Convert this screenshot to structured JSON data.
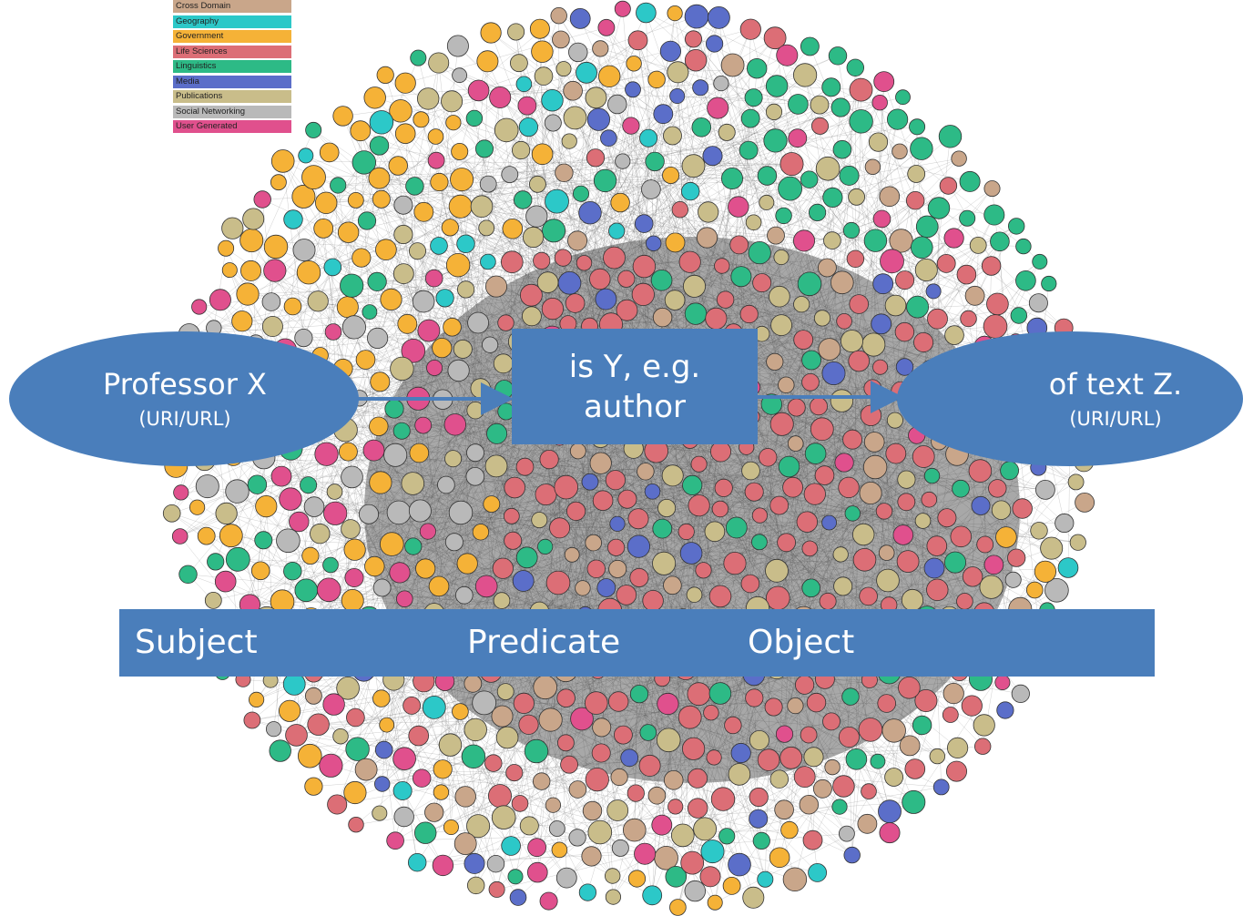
{
  "legend": [
    {
      "label": "Cross Domain",
      "color": "#c9a68a"
    },
    {
      "label": "Geography",
      "color": "#2cc8c8"
    },
    {
      "label": "Government",
      "color": "#f5b237"
    },
    {
      "label": "Life Sciences",
      "color": "#dc6e76"
    },
    {
      "label": "Linguistics",
      "color": "#2dba86"
    },
    {
      "label": "Media",
      "color": "#5b6ec9"
    },
    {
      "label": "Publications",
      "color": "#c9bd8a"
    },
    {
      "label": "Social Networking",
      "color": "#b9b9b9"
    },
    {
      "label": "User Generated",
      "color": "#e0508d"
    }
  ],
  "subject": {
    "title": "Professor X",
    "subtitle": "(URI/URL)"
  },
  "predicate": {
    "line1": "is Y, e.g.",
    "line2": "author"
  },
  "object": {
    "title": "of text Z.",
    "subtitle": "(URI/URL)"
  },
  "triple": {
    "subject": "Subject",
    "predicate": "Predicate",
    "object": "Object"
  },
  "colors": {
    "shape_fill": "#4a7ebb",
    "shape_text": "#ffffff",
    "edge": "#555555",
    "core": "#4a4a4a"
  }
}
